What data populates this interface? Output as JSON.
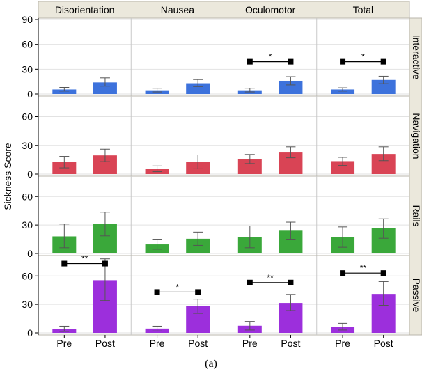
{
  "chart_data": {
    "type": "bar",
    "ylabel": "Sickness Score",
    "caption": "(a)",
    "columns": [
      "Disorientation",
      "Nausea",
      "Oculomotor",
      "Total"
    ],
    "categories": [
      "Pre",
      "Post"
    ],
    "yticks": [
      0,
      30,
      60,
      90
    ],
    "rows": [
      {
        "name": "Interactive",
        "color": "#3d72dc",
        "ylim": [
          0,
          90
        ],
        "yticks": [
          0,
          30,
          60,
          90
        ],
        "cells": [
          {
            "values": [
              5.5,
              14
            ],
            "err_lo": [
              3.5,
              9.5
            ],
            "err_hi": [
              8,
              19.5
            ],
            "sig": null
          },
          {
            "values": [
              4.5,
              13
            ],
            "err_lo": [
              2.5,
              9
            ],
            "err_hi": [
              7,
              17.5
            ],
            "sig": null
          },
          {
            "values": [
              4.5,
              16
            ],
            "err_lo": [
              2.5,
              11
            ],
            "err_hi": [
              7,
              21
            ],
            "sig": {
              "label": "*",
              "y": 39
            }
          },
          {
            "values": [
              5.5,
              17
            ],
            "err_lo": [
              3.5,
              12.5
            ],
            "err_hi": [
              7.5,
              21.5
            ],
            "sig": {
              "label": "*",
              "y": 39
            }
          }
        ]
      },
      {
        "name": "Navigation",
        "color": "#d94455",
        "ylim": [
          0,
          80
        ],
        "yticks": [
          0,
          30,
          60
        ],
        "cells": [
          {
            "values": [
              12.5,
              19.5
            ],
            "err_lo": [
              6.5,
              13
            ],
            "err_hi": [
              18.5,
              26
            ],
            "sig": null
          },
          {
            "values": [
              5.5,
              12.5
            ],
            "err_lo": [
              2.5,
              5.5
            ],
            "err_hi": [
              8.5,
              20
            ],
            "sig": null
          },
          {
            "values": [
              15.5,
              22.5
            ],
            "err_lo": [
              11,
              17
            ],
            "err_hi": [
              20.5,
              28.5
            ],
            "sig": null
          },
          {
            "values": [
              13.5,
              21
            ],
            "err_lo": [
              9,
              14
            ],
            "err_hi": [
              17.5,
              28.5
            ],
            "sig": null
          }
        ]
      },
      {
        "name": "Rails",
        "color": "#3aa83a",
        "ylim": [
          0,
          80
        ],
        "yticks": [
          0,
          30,
          60
        ],
        "cells": [
          {
            "values": [
              18,
              31
            ],
            "err_lo": [
              6,
              18.5
            ],
            "err_hi": [
              31,
              43.5
            ],
            "sig": null
          },
          {
            "values": [
              9.5,
              15.5
            ],
            "err_lo": [
              4.5,
              8.5
            ],
            "err_hi": [
              15,
              22.5
            ],
            "sig": null
          },
          {
            "values": [
              17.5,
              24
            ],
            "err_lo": [
              6,
              15
            ],
            "err_hi": [
              29,
              33
            ],
            "sig": null
          },
          {
            "values": [
              17,
              26.5
            ],
            "err_lo": [
              6.5,
              16
            ],
            "err_hi": [
              28,
              36.5
            ],
            "sig": null
          }
        ]
      },
      {
        "name": "Passive",
        "color": "#9c2fdc",
        "ylim": [
          0,
          80
        ],
        "yticks": [
          0,
          30,
          60
        ],
        "cells": [
          {
            "values": [
              4,
              55.5
            ],
            "err_lo": [
              1.5,
              34
            ],
            "err_hi": [
              7,
              78
            ],
            "sig": {
              "label": "**",
              "y": 73
            }
          },
          {
            "values": [
              4.5,
              28
            ],
            "err_lo": [
              2,
              20.5
            ],
            "err_hi": [
              7,
              35.5
            ],
            "sig": {
              "label": "*",
              "y": 43
            }
          },
          {
            "values": [
              7.5,
              31.5
            ],
            "err_lo": [
              3,
              23.5
            ],
            "err_hi": [
              12,
              40.5
            ],
            "sig": {
              "label": "**",
              "y": 53
            }
          },
          {
            "values": [
              6.5,
              41
            ],
            "err_lo": [
              3,
              29
            ],
            "err_hi": [
              10,
              54
            ],
            "sig": {
              "label": "**",
              "y": 63
            }
          }
        ]
      }
    ]
  }
}
